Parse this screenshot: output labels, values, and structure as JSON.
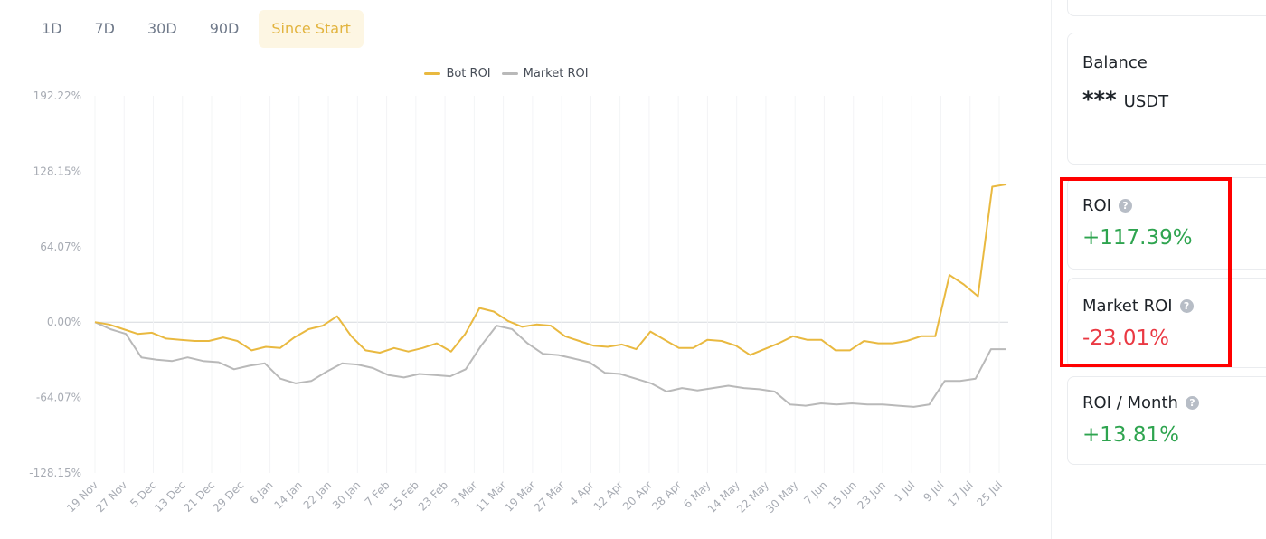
{
  "tabs": [
    {
      "label": "1D",
      "active": false
    },
    {
      "label": "7D",
      "active": false
    },
    {
      "label": "30D",
      "active": false
    },
    {
      "label": "90D",
      "active": false
    },
    {
      "label": "Since Start",
      "active": true
    }
  ],
  "legend": {
    "bot_label": "Bot ROI",
    "market_label": "Market ROI"
  },
  "colors": {
    "bot": "#e9b940",
    "market": "#b9b9b9",
    "positive": "#2ea44f",
    "negative": "#ea3943",
    "highlight": "#ff0000"
  },
  "cards": {
    "balance": {
      "label": "Balance",
      "mask": "***",
      "unit": "USDT"
    },
    "roi": {
      "label": "ROI",
      "value": "+117.39%"
    },
    "market_roi": {
      "label": "Market ROI",
      "value": "-23.01%"
    },
    "roi_month": {
      "label": "ROI / Month",
      "value": "+13.81%"
    }
  },
  "chart_data": {
    "type": "line",
    "y_ticks": [
      192.22,
      128.15,
      64.07,
      0.0,
      -64.07,
      -128.15
    ],
    "y_tick_labels": [
      "192.22%",
      "128.15%",
      "64.07%",
      "0.00%",
      "-64.07%",
      "-128.15%"
    ],
    "ylim": [
      -128.15,
      192.22
    ],
    "x_tick_labels": [
      "19 Nov",
      "27 Nov",
      "5 Dec",
      "13 Dec",
      "21 Dec",
      "29 Dec",
      "6 Jan",
      "14 Jan",
      "22 Jan",
      "30 Jan",
      "7 Feb",
      "15 Feb",
      "23 Feb",
      "3 Mar",
      "11 Mar",
      "19 Mar",
      "27 Mar",
      "4 Apr",
      "12 Apr",
      "20 Apr",
      "28 Apr",
      "6 May",
      "14 May",
      "22 May",
      "30 May",
      "7 Jun",
      "15 Jun",
      "23 Jun",
      "1 Jul",
      "9 Jul",
      "17 Jul",
      "25 Jul"
    ],
    "grid": "vertical",
    "legend_position": "top-center",
    "series": [
      {
        "name": "Bot ROI",
        "values": [
          0,
          -2,
          -6,
          -10,
          -9,
          -14,
          -15,
          -16,
          -16,
          -13,
          -16,
          -24,
          -21,
          -22,
          -13,
          -6,
          -3,
          5,
          -12,
          -24,
          -26,
          -22,
          -25,
          -22,
          -18,
          -25,
          -10,
          12,
          9,
          1,
          -4,
          -2,
          -3,
          -12,
          -16,
          -20,
          -21,
          -19,
          -23,
          -8,
          -15,
          -22,
          -22,
          -15,
          -16,
          -20,
          -28,
          -23,
          -18,
          -12,
          -15,
          -15,
          -24,
          -24,
          -16,
          -18,
          -18,
          -16,
          -12,
          -12,
          40,
          32,
          22,
          115,
          117
        ]
      },
      {
        "name": "Market ROI",
        "values": [
          0,
          -6,
          -10,
          -30,
          -32,
          -33,
          -30,
          -33,
          -34,
          -40,
          -37,
          -35,
          -48,
          -52,
          -50,
          -42,
          -35,
          -36,
          -39,
          -45,
          -47,
          -44,
          -45,
          -46,
          -40,
          -20,
          -3,
          -6,
          -18,
          -27,
          -28,
          -31,
          -34,
          -43,
          -44,
          -48,
          -52,
          -59,
          -56,
          -58,
          -56,
          -54,
          -56,
          -57,
          -59,
          -70,
          -71,
          -69,
          -70,
          -69,
          -70,
          -70,
          -71,
          -72,
          -70,
          -50,
          -50,
          -48,
          -23,
          -23
        ]
      }
    ]
  }
}
